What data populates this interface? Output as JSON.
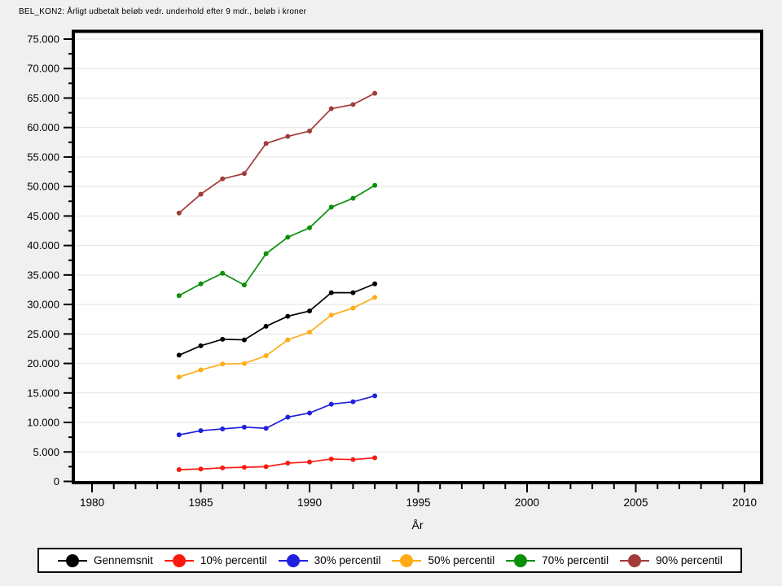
{
  "figure": {
    "background_color": "#F0F0F0"
  },
  "chart_data": {
    "type": "line",
    "title": "BEL_KON2: Årligt udbetalt beløb vedr. underhold efter 9 mdr., beløb i kroner",
    "xlabel": "År",
    "ylabel": "",
    "x": [
      1984,
      1985,
      1986,
      1987,
      1988,
      1989,
      1990,
      1991,
      1992,
      1993
    ],
    "series": [
      {
        "id": "gennemsnit",
        "name": "Gennemsnit",
        "color": "#000000",
        "values": [
          21400,
          23000,
          24100,
          24000,
          26300,
          28000,
          28900,
          32000,
          32000,
          33500
        ]
      },
      {
        "id": "p10",
        "name": "10% percentil",
        "color": "#FB1A10",
        "values": [
          2000,
          2100,
          2300,
          2400,
          2500,
          3100,
          3300,
          3800,
          3700,
          4000
        ]
      },
      {
        "id": "p30",
        "name": "30% percentil",
        "color": "#2020DF",
        "values": [
          7900,
          8600,
          8900,
          9200,
          9000,
          10900,
          11600,
          13100,
          13500,
          14500
        ]
      },
      {
        "id": "p50",
        "name": "50% percentil",
        "color": "#FFAC16",
        "values": [
          17700,
          18900,
          19900,
          20000,
          21300,
          24000,
          25300,
          28200,
          29400,
          31200
        ]
      },
      {
        "id": "p70",
        "name": "70% percentil",
        "color": "#0A8F0A",
        "values": [
          31500,
          33500,
          35300,
          33300,
          38600,
          41400,
          43000,
          46500,
          48000,
          50200
        ]
      },
      {
        "id": "p90",
        "name": "90% percentil",
        "color": "#A33B3B",
        "values": [
          45500,
          48700,
          51300,
          52200,
          57300,
          58500,
          59400,
          63200,
          63900,
          65800
        ]
      }
    ],
    "xlim": [
      1979.1,
      2010.8
    ],
    "ylim": [
      0,
      75000
    ],
    "xticks": {
      "major": [
        1980,
        1985,
        1990,
        1995,
        2000,
        2005,
        2010
      ],
      "labels": [
        "1980",
        "1985",
        "1990",
        "1995",
        "2000",
        "2005",
        "2010"
      ],
      "minor_every_years": 1
    },
    "yticks": {
      "major_every": 5000,
      "minor_every": 2500,
      "labels": [
        "0",
        "5.000",
        "10.000",
        "15.000",
        "20.000",
        "25.000",
        "30.000",
        "35.000",
        "40.000",
        "45.000",
        "50.000",
        "55.000",
        "60.000",
        "65.000",
        "70.000",
        "75.000"
      ]
    },
    "grid": "horizontal-major",
    "grid_color": "#E2E2E2",
    "plot_bg": "#FFFFFF",
    "legend_position": "bottom"
  }
}
